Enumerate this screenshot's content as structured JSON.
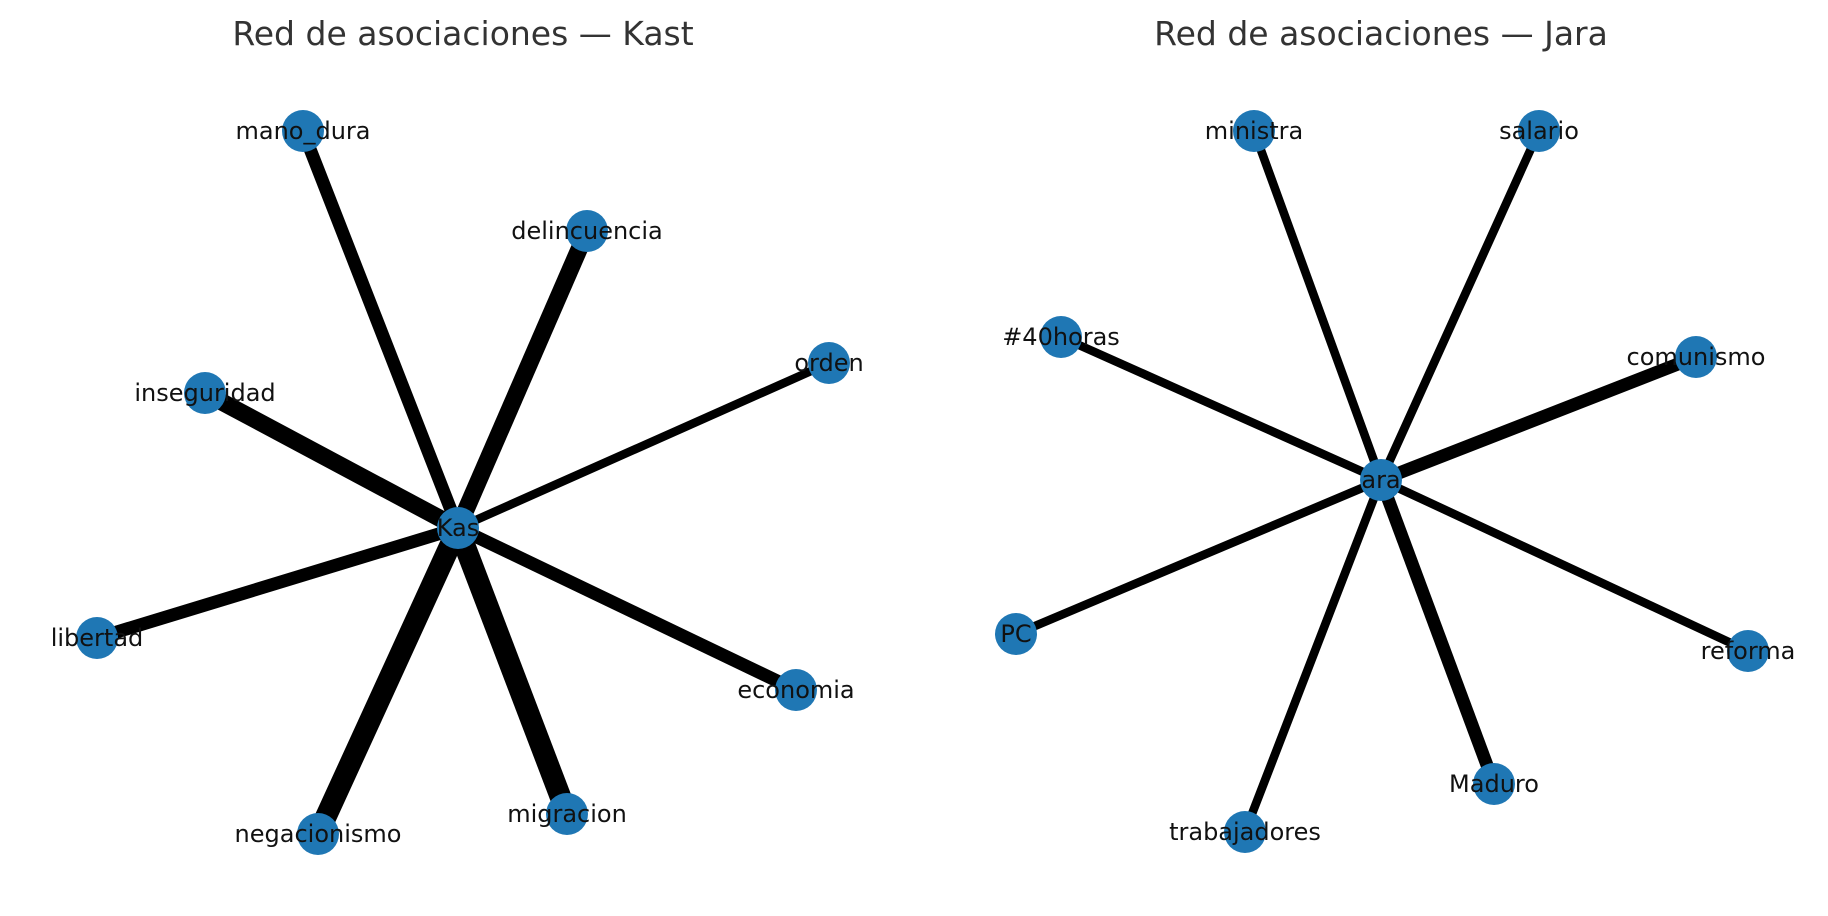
{
  "figure": {
    "panels": [
      {
        "title": "Red de asociaciones — Kast",
        "center": {
          "label": "Kast",
          "visible_label": "Kas"
        },
        "edge_color": "#000000",
        "node_color": "#1f77b4",
        "nodes": [
          {
            "label": "mano_dura",
            "weight": 3
          },
          {
            "label": "delincuencia",
            "weight": 4
          },
          {
            "label": "orden",
            "weight": 2
          },
          {
            "label": "inseguridad",
            "weight": 4
          },
          {
            "label": "libertad",
            "weight": 3
          },
          {
            "label": "economia",
            "weight": 3
          },
          {
            "label": "negacionismo",
            "weight": 5
          },
          {
            "label": "migracion",
            "weight": 5
          }
        ]
      },
      {
        "title": "Red de asociaciones — Jara",
        "center": {
          "label": "Jara",
          "visible_label": "ara"
        },
        "edge_color": "#000000",
        "node_color": "#1f77b4",
        "nodes": [
          {
            "label": "ministra",
            "weight": 2
          },
          {
            "label": "salario",
            "weight": 2
          },
          {
            "label": "#40horas",
            "weight": 2
          },
          {
            "label": "comunismo",
            "weight": 3
          },
          {
            "label": "PC",
            "weight": 2
          },
          {
            "label": "reforma",
            "weight": 2
          },
          {
            "label": "Maduro",
            "weight": 3
          },
          {
            "label": "trabajadores",
            "weight": 2
          }
        ]
      }
    ]
  }
}
